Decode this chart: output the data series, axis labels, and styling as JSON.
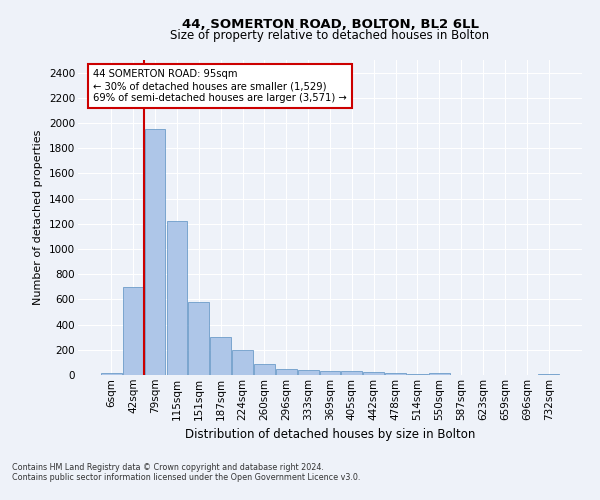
{
  "title": "44, SOMERTON ROAD, BOLTON, BL2 6LL",
  "subtitle": "Size of property relative to detached houses in Bolton",
  "xlabel": "Distribution of detached houses by size in Bolton",
  "ylabel": "Number of detached properties",
  "bar_color": "#aec6e8",
  "bar_edge_color": "#5a8fc2",
  "annotation_title": "44 SOMERTON ROAD: 95sqm",
  "annotation_line1": "← 30% of detached houses are smaller (1,529)",
  "annotation_line2": "69% of semi-detached houses are larger (3,571) →",
  "annotation_box_color": "#ffffff",
  "annotation_border_color": "#cc0000",
  "vline_color": "#cc0000",
  "background_color": "#eef2f9",
  "grid_color": "#ffffff",
  "footer_line1": "Contains HM Land Registry data © Crown copyright and database right 2024.",
  "footer_line2": "Contains public sector information licensed under the Open Government Licence v3.0.",
  "categories": [
    "6sqm",
    "42sqm",
    "79sqm",
    "115sqm",
    "151sqm",
    "187sqm",
    "224sqm",
    "260sqm",
    "296sqm",
    "333sqm",
    "369sqm",
    "405sqm",
    "442sqm",
    "478sqm",
    "514sqm",
    "550sqm",
    "587sqm",
    "623sqm",
    "659sqm",
    "696sqm",
    "732sqm"
  ],
  "values": [
    15,
    700,
    1950,
    1220,
    580,
    305,
    200,
    85,
    45,
    38,
    35,
    30,
    25,
    18,
    5,
    15,
    3,
    2,
    2,
    2,
    10
  ],
  "ylim": [
    0,
    2500
  ],
  "yticks": [
    0,
    200,
    400,
    600,
    800,
    1000,
    1200,
    1400,
    1600,
    1800,
    2000,
    2200,
    2400
  ],
  "highlight_vline_index": 2,
  "figwidth": 6.0,
  "figheight": 5.0,
  "dpi": 100
}
